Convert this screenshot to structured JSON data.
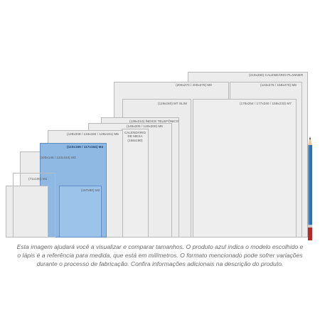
{
  "sizes": {
    "m8_planner": "(210x290) CALENDÁRIO PLANNER",
    "m9": "(200x270 / 200x275) M9",
    "m8": "(123x275 / 159x270) M8",
    "m7_slim": "(119x240) M7 SLIM",
    "m7": "(178x254 / 177x240 / 159x233) M7",
    "m6_indice": "(135x210) ÍNDICE TELEFÔNICO",
    "m6": "(145x205 / 140x200) M6",
    "calendario_mesa_title": "CALENDÁRIO DE MESA",
    "calendario_mesa_size": "(158x190)",
    "m5": "(128x208 / 134x192 / 129x181) M5",
    "m4": "(123x166 / 117x164) M4",
    "m3": "(100x146 / 110x154) M3",
    "m1": "(71x100) M1",
    "m2": "(167x80) M2"
  },
  "caption": {
    "line1": "Esta imagem ajudará você a visualizar e comparar tamanhos. O produto azul indica o modelo escolhido e",
    "line2": "o lápis é a referência para medida, que está em milímetros. O formato mencionado pode sofrer variações",
    "line3": "durante o processo de fabricação. Confira informações adicionais na descrição do produto."
  },
  "colors": {
    "selected": "#8fb8e3",
    "sheet": "#ececec",
    "pencil_body": "#2f6fb0",
    "pencil_end": "#b8282a"
  },
  "icons": [
    "pencil-icon"
  ]
}
